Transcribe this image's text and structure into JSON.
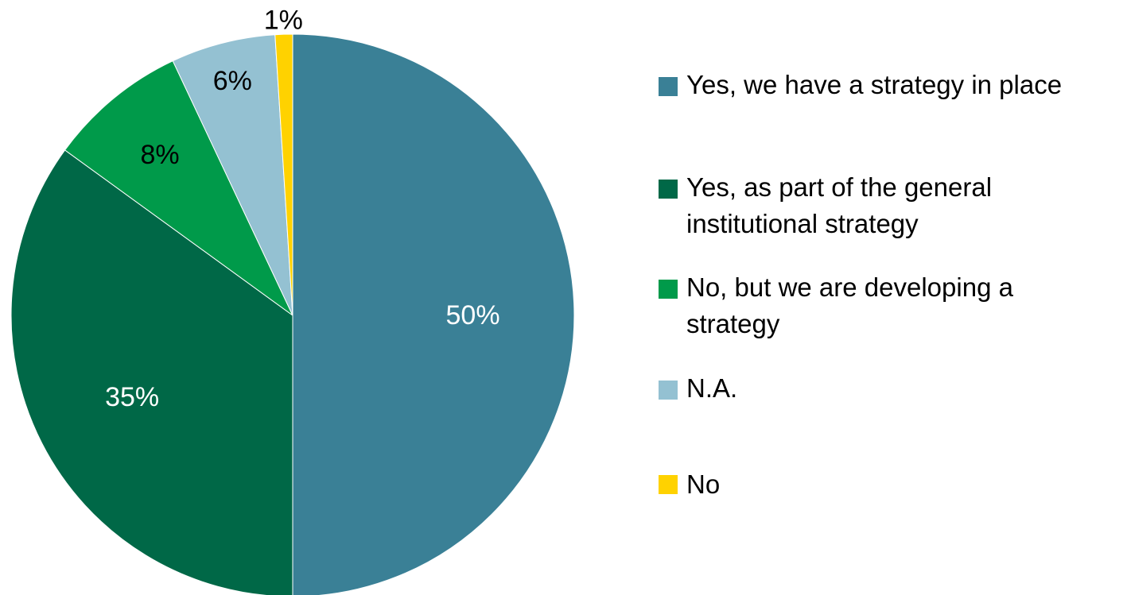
{
  "chart_data": {
    "type": "pie",
    "title": "",
    "slices": [
      {
        "label": "Yes, we have a strategy in place",
        "value": 50,
        "value_label": "50%",
        "color": "#3a8096",
        "label_color": "#ffffff"
      },
      {
        "label": "Yes, as part of the general institutional strategy",
        "value": 35,
        "value_label": "35%",
        "color": "#006847",
        "label_color": "#ffffff"
      },
      {
        "label": "No, but we are developing a strategy",
        "value": 8,
        "value_label": "8%",
        "color": "#009a4a",
        "label_color": "#000000"
      },
      {
        "label": "N.A.",
        "value": 6,
        "value_label": "6%",
        "color": "#94c1d2",
        "label_color": "#000000"
      },
      {
        "label": "No",
        "value": 1,
        "value_label": "1%",
        "color": "#ffd200",
        "label_color": "#000000"
      }
    ],
    "legend_position": "right",
    "start_angle": "12 o'clock",
    "direction": "clockwise"
  },
  "legend": {
    "items": [
      {
        "text": "Yes, we have a strategy in place",
        "color": "#3a8096"
      },
      {
        "text": "Yes, as part of the general institutional strategy",
        "color": "#006847"
      },
      {
        "text": "No, but we are developing a strategy",
        "color": "#009a4a"
      },
      {
        "text": "N.A.",
        "color": "#94c1d2"
      },
      {
        "text": "No",
        "color": "#ffd200"
      }
    ]
  }
}
